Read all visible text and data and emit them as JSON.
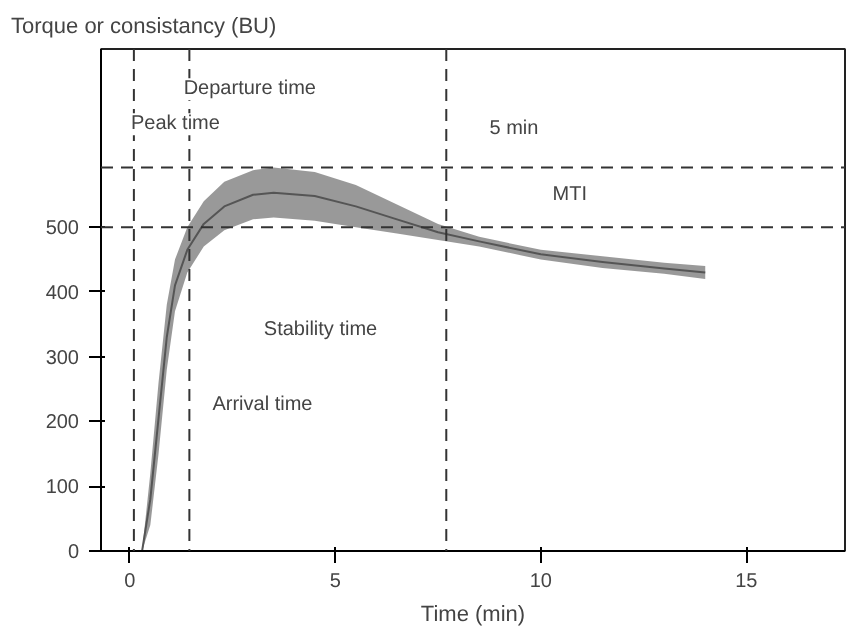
{
  "chart_data": {
    "type": "line",
    "ylabel": "Torque or consistancy (BU)",
    "xlabel": "Time (min)",
    "x": [
      0.3,
      0.5,
      0.7,
      0.9,
      1.1,
      1.4,
      1.8,
      2.3,
      3,
      3.5,
      4.5,
      5.5,
      6.5,
      7.5,
      8.5,
      10,
      11.5,
      13,
      14
    ],
    "series": [
      {
        "color": "#555555",
        "values": [
          0,
          80,
          205,
          330,
          410,
          465,
          505,
          532,
          550,
          553,
          548,
          532,
          512,
          492,
          478,
          458,
          446,
          436,
          430
        ],
        "lower": [
          0,
          40,
          150,
          280,
          370,
          430,
          470,
          495,
          512,
          515,
          510,
          500,
          490,
          480,
          470,
          450,
          437,
          428,
          420
        ],
        "upper": [
          0,
          120,
          260,
          380,
          450,
          500,
          540,
          570,
          588,
          592,
          585,
          565,
          535,
          505,
          485,
          465,
          455,
          445,
          440
        ]
      }
    ],
    "xlim": [
      -0.7,
      17.4
    ],
    "ylim": [
      0,
      775
    ],
    "xticks": [
      0,
      5,
      10,
      15
    ],
    "yticks": [
      0,
      100,
      200,
      300,
      400,
      500
    ],
    "ref_lines": [
      {
        "axis": "y",
        "value": 500,
        "line_style": "dashed",
        "color": "#333333"
      },
      {
        "axis": "y",
        "value": 592,
        "line_style": "dashed",
        "color": "#333333"
      },
      {
        "axis": "x",
        "value": 0.1,
        "line_style": "dashed",
        "color": "#333333"
      },
      {
        "axis": "x",
        "value": 1.45,
        "line_style": "dashed",
        "color": "#333333"
      },
      {
        "axis": "x",
        "value": 7.7,
        "line_style": "dashed",
        "color": "#333333"
      }
    ],
    "annotations": [
      "Departure time",
      "Peak time",
      "5 min",
      "MTI",
      "Stability time",
      "Arrival time"
    ],
    "grid": false,
    "line_style": "solid"
  }
}
